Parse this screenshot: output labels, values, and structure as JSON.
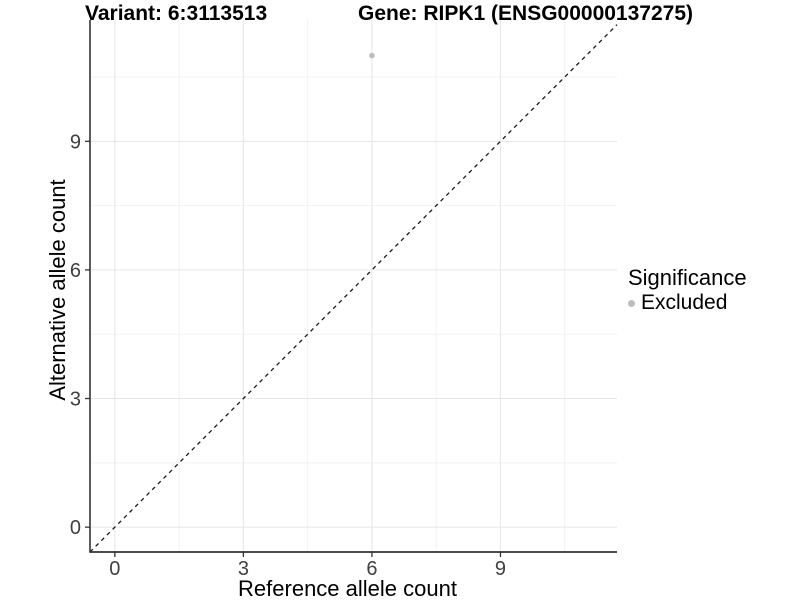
{
  "titles": {
    "variant": "Variant: 6:3113513",
    "gene": "Gene: RIPK1 (ENSG00000137275)"
  },
  "legend": {
    "title": "Significance",
    "items": [
      {
        "label": "Excluded",
        "color": "#bdbdbd",
        "marker": "circle-icon"
      }
    ]
  },
  "chart_data": {
    "type": "scatter",
    "title_left": "Variant: 6:3113513",
    "title_right": "Gene: RIPK1 (ENSG00000137275)",
    "xlabel": "Reference allele count",
    "ylabel": "Alternative allele count",
    "xlim": [
      -0.58,
      11.72
    ],
    "ylim": [
      -0.58,
      11.83
    ],
    "xticks": [
      0,
      3,
      6,
      9
    ],
    "yticks": [
      0,
      3,
      6,
      9
    ],
    "xticks_minor": [
      1.5,
      4.5,
      7.5,
      10.5
    ],
    "yticks_minor": [
      1.5,
      4.5,
      7.5,
      10.5
    ],
    "grid": "major+minor",
    "legend_position": "right",
    "series": [
      {
        "name": "Excluded",
        "color": "#bdbdbd",
        "points": [
          {
            "x": 6,
            "y": 11
          }
        ]
      }
    ],
    "reference_line": {
      "kind": "identity",
      "slope": 1,
      "intercept": 0,
      "style": "dashed"
    },
    "colors": {
      "background": "#ffffff",
      "panel_background": "#ffffff",
      "grid_major": "#e6e6e6",
      "grid_minor": "#f2f2f2",
      "axis_line": "#333333",
      "tick_mark": "#333333",
      "tick_label": "#404040",
      "reference_line": "#1a1a1a",
      "point": "#bdbdbd"
    }
  }
}
